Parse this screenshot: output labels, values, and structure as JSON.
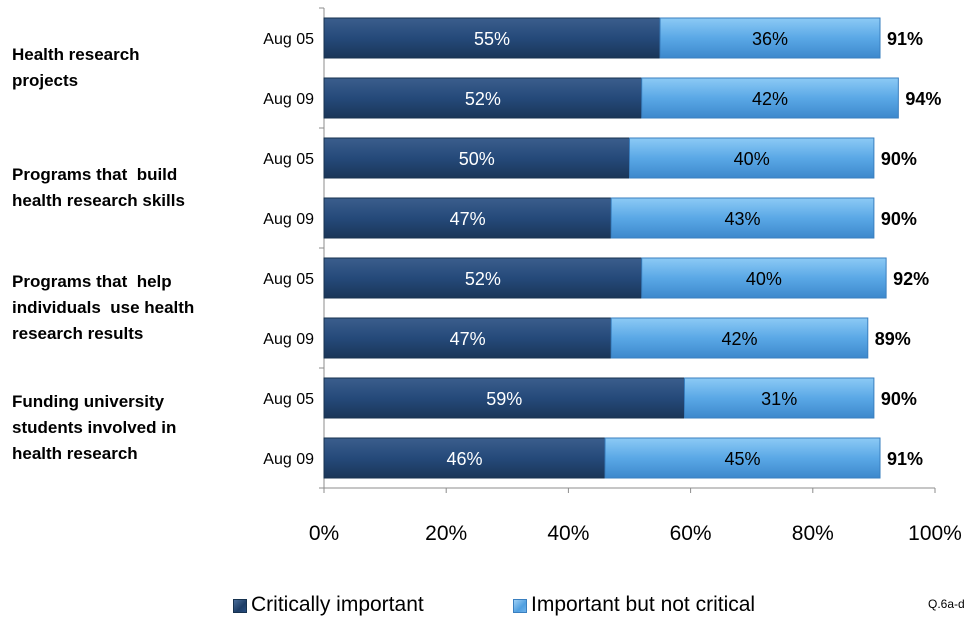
{
  "chart_data": {
    "type": "bar",
    "orientation": "horizontal",
    "stacked": true,
    "groups": [
      {
        "label": "Health research projects",
        "rows": [
          "Aug 05",
          "Aug 09"
        ]
      },
      {
        "label": "Programs that build health research skills",
        "rows": [
          "Aug 05",
          "Aug 09"
        ]
      },
      {
        "label": "Programs that help individuals use health research results",
        "rows": [
          "Aug 05",
          "Aug 09"
        ]
      },
      {
        "label": "Funding university students involved in health research",
        "rows": [
          "Aug 05",
          "Aug 09"
        ]
      }
    ],
    "categories": [
      "Aug 05",
      "Aug 09",
      "Aug 05",
      "Aug 09",
      "Aug 05",
      "Aug 09",
      "Aug 05",
      "Aug 09"
    ],
    "series": [
      {
        "name": "Critically important",
        "values": [
          55,
          52,
          50,
          47,
          52,
          47,
          59,
          46
        ],
        "labels": [
          "55%",
          "52%",
          "50%",
          "47%",
          "52%",
          "47%",
          "59%",
          "46%"
        ]
      },
      {
        "name": "Important but not critical",
        "values": [
          36,
          42,
          40,
          43,
          40,
          42,
          31,
          45
        ],
        "labels": [
          "36%",
          "42%",
          "40%",
          "43%",
          "40%",
          "42%",
          "31%",
          "45%"
        ]
      }
    ],
    "totals": [
      "91%",
      "94%",
      "90%",
      "90%",
      "92%",
      "89%",
      "90%",
      "91%"
    ],
    "xlim": [
      0,
      100
    ],
    "xticks": [
      "0%",
      "20%",
      "40%",
      "60%",
      "80%",
      "100%"
    ],
    "grid": false,
    "legend_position": "bottom"
  },
  "group_label_lines": [
    [
      "Health research",
      "projects"
    ],
    [
      "Programs that  build",
      "health research skills"
    ],
    [
      "Programs that  help",
      "individuals  use health",
      "research results"
    ],
    [
      "Funding university",
      "students involved in",
      "health research"
    ]
  ],
  "legend": {
    "critical": "Critically important",
    "important": "Important but not critical"
  },
  "colors": {
    "critical": "#1f3f69",
    "important": "#5aa8e6"
  },
  "footnote": "Q.6a-d"
}
